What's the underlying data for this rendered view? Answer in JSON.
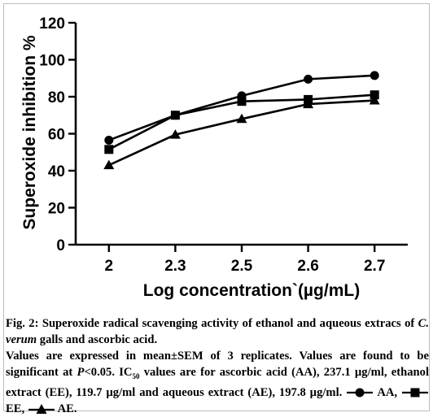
{
  "chart_data": {
    "type": "line",
    "xlabel": "Log concentration`(µg/mL)",
    "ylabel": "Superoxide inhibition %",
    "categories": [
      "2",
      "2.3",
      "2.5",
      "2.6",
      "2.7"
    ],
    "yticks": [
      "0",
      "20",
      "40",
      "60",
      "80",
      "100",
      "120"
    ],
    "ylim": [
      0,
      120
    ],
    "grid": false,
    "series": [
      {
        "name": "AA",
        "marker": "circle",
        "values": [
          56.5,
          70.0,
          80.5,
          89.5,
          91.5
        ]
      },
      {
        "name": "EE",
        "marker": "square",
        "values": [
          51.5,
          70.0,
          77.5,
          78.5,
          81.0
        ]
      },
      {
        "name": "AE",
        "marker": "triangle",
        "values": [
          43.0,
          59.5,
          68.0,
          76.0,
          78.0
        ]
      }
    ]
  },
  "caption": {
    "fig_label": "Fig. 2:",
    "title_pre": "Superoxide radical scavenging activity of ethanol and aqueous extracs of",
    "species": "C. verum",
    "title_post": "galls and ascorbic acid.",
    "note_pre": "Values are expressed in mean±SEM of 3 replicates. Values are found to be significant at",
    "p_symbol": "P",
    "p_value": "<0.05. IC",
    "ic_sub": "50",
    "note_post": "values are for ascorbic acid (AA), 237.1 µg/ml, ethanol extract (EE), 119.7 µg/ml and aqueous extract (AE), 197.8 µg/ml.",
    "legend_aa": "AA,",
    "legend_ee": "EE,",
    "legend_ae": "AE."
  }
}
